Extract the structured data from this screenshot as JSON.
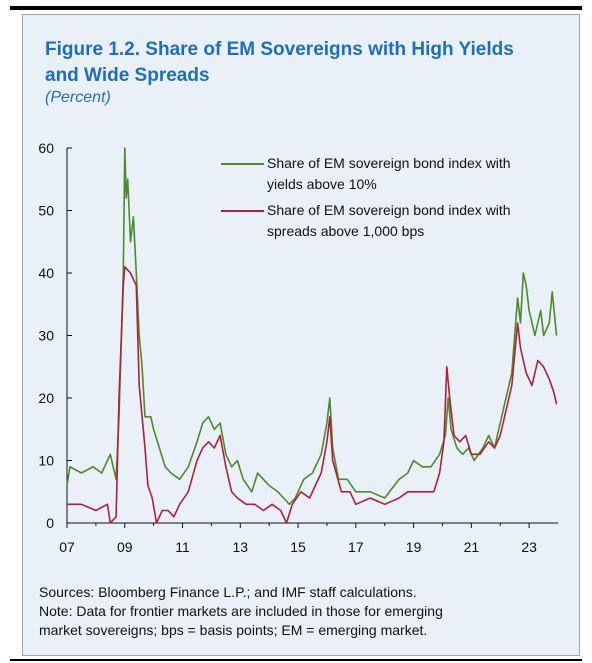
{
  "header": {
    "title_line1": "Figure 1.2. Share of EM Sovereigns with High Yields",
    "title_line2": "and Wide Spreads",
    "subtitle": "(Percent)"
  },
  "notes": {
    "sources": "Sources: Bloomberg Finance L.P.; and IMF staff calculations.",
    "note_line1": "Note: Data for frontier markets are included in those for emerging",
    "note_line2": "market sovereigns; bps = basis points; EM = emerging market."
  },
  "colors": {
    "green": "#4d8a2f",
    "red": "#b0203a",
    "title": "#1f6fb8",
    "panel": "#e9f0f7"
  },
  "chart_data": {
    "type": "line",
    "title": "Figure 1.2. Share of EM Sovereigns with High Yields and Wide Spreads",
    "ylabel": "(Percent)",
    "xlabel": "",
    "xlim": [
      2007,
      2024
    ],
    "ylim": [
      0,
      60
    ],
    "x_ticks": [
      "07",
      "09",
      "11",
      "13",
      "15",
      "17",
      "19",
      "21",
      "23"
    ],
    "y_ticks": [
      "0",
      "10",
      "20",
      "30",
      "40",
      "50",
      "60"
    ],
    "grid": false,
    "legend_position": "top-right",
    "series": [
      {
        "name": "Share of EM sovereign bond index with yields above 10%",
        "legend_lines": [
          "Share of EM sovereign bond index with",
          "yields above 10%"
        ],
        "color": "#4d8a2f",
        "points": [
          [
            2007.0,
            6
          ],
          [
            2007.1,
            9
          ],
          [
            2007.5,
            8
          ],
          [
            2007.9,
            9
          ],
          [
            2008.2,
            8
          ],
          [
            2008.5,
            11
          ],
          [
            2008.7,
            7
          ],
          [
            2008.8,
            17
          ],
          [
            2008.95,
            40
          ],
          [
            2009.0,
            60
          ],
          [
            2009.05,
            52
          ],
          [
            2009.1,
            55
          ],
          [
            2009.2,
            45
          ],
          [
            2009.3,
            49
          ],
          [
            2009.4,
            40
          ],
          [
            2009.5,
            30
          ],
          [
            2009.6,
            25
          ],
          [
            2009.7,
            17
          ],
          [
            2009.9,
            17
          ],
          [
            2010.0,
            15
          ],
          [
            2010.2,
            12
          ],
          [
            2010.4,
            9
          ],
          [
            2010.6,
            8
          ],
          [
            2010.9,
            7
          ],
          [
            2011.2,
            9
          ],
          [
            2011.5,
            13
          ],
          [
            2011.7,
            16
          ],
          [
            2011.9,
            17
          ],
          [
            2012.1,
            15
          ],
          [
            2012.3,
            16
          ],
          [
            2012.5,
            11
          ],
          [
            2012.7,
            9
          ],
          [
            2012.9,
            10
          ],
          [
            2013.1,
            7
          ],
          [
            2013.4,
            5
          ],
          [
            2013.6,
            8
          ],
          [
            2013.8,
            7
          ],
          [
            2014.0,
            6
          ],
          [
            2014.3,
            5
          ],
          [
            2014.5,
            4
          ],
          [
            2014.7,
            3
          ],
          [
            2014.9,
            4
          ],
          [
            2015.2,
            7
          ],
          [
            2015.5,
            8
          ],
          [
            2015.8,
            11
          ],
          [
            2016.0,
            16
          ],
          [
            2016.1,
            20
          ],
          [
            2016.2,
            12
          ],
          [
            2016.4,
            7
          ],
          [
            2016.7,
            7
          ],
          [
            2017.0,
            5
          ],
          [
            2017.5,
            5
          ],
          [
            2018.0,
            4
          ],
          [
            2018.5,
            7
          ],
          [
            2018.8,
            8
          ],
          [
            2019.0,
            10
          ],
          [
            2019.3,
            9
          ],
          [
            2019.6,
            9
          ],
          [
            2019.9,
            11
          ],
          [
            2020.1,
            14
          ],
          [
            2020.2,
            20
          ],
          [
            2020.3,
            15
          ],
          [
            2020.5,
            12
          ],
          [
            2020.7,
            11
          ],
          [
            2020.9,
            12
          ],
          [
            2021.1,
            10
          ],
          [
            2021.4,
            12
          ],
          [
            2021.6,
            14
          ],
          [
            2021.8,
            12
          ],
          [
            2022.0,
            16
          ],
          [
            2022.2,
            20
          ],
          [
            2022.4,
            24
          ],
          [
            2022.6,
            36
          ],
          [
            2022.7,
            32
          ],
          [
            2022.8,
            40
          ],
          [
            2022.9,
            38
          ],
          [
            2023.0,
            34
          ],
          [
            2023.2,
            30
          ],
          [
            2023.4,
            34
          ],
          [
            2023.5,
            30
          ],
          [
            2023.7,
            32
          ],
          [
            2023.8,
            37
          ],
          [
            2023.95,
            30
          ]
        ]
      },
      {
        "name": "Share of EM sovereign bond index with spreads above 1,000 bps",
        "legend_lines": [
          "Share of EM sovereign bond index with",
          "spreads above 1,000 bps"
        ],
        "color": "#b0203a",
        "points": [
          [
            2007.0,
            3
          ],
          [
            2007.5,
            3
          ],
          [
            2008.0,
            2
          ],
          [
            2008.4,
            3
          ],
          [
            2008.5,
            0
          ],
          [
            2008.7,
            1
          ],
          [
            2008.8,
            20
          ],
          [
            2008.95,
            38
          ],
          [
            2009.0,
            41
          ],
          [
            2009.2,
            40
          ],
          [
            2009.4,
            38
          ],
          [
            2009.5,
            22
          ],
          [
            2009.7,
            12
          ],
          [
            2009.8,
            6
          ],
          [
            2009.95,
            4
          ],
          [
            2010.1,
            0
          ],
          [
            2010.3,
            2
          ],
          [
            2010.5,
            2
          ],
          [
            2010.7,
            1
          ],
          [
            2010.9,
            3
          ],
          [
            2011.2,
            5
          ],
          [
            2011.5,
            10
          ],
          [
            2011.7,
            12
          ],
          [
            2011.9,
            13
          ],
          [
            2012.1,
            12
          ],
          [
            2012.3,
            14
          ],
          [
            2012.5,
            9
          ],
          [
            2012.7,
            5
          ],
          [
            2012.9,
            4
          ],
          [
            2013.2,
            3
          ],
          [
            2013.5,
            3
          ],
          [
            2013.8,
            2
          ],
          [
            2014.1,
            3
          ],
          [
            2014.4,
            2
          ],
          [
            2014.6,
            0
          ],
          [
            2014.8,
            3
          ],
          [
            2015.1,
            5
          ],
          [
            2015.4,
            4
          ],
          [
            2015.8,
            8
          ],
          [
            2016.0,
            13
          ],
          [
            2016.1,
            17
          ],
          [
            2016.2,
            10
          ],
          [
            2016.5,
            5
          ],
          [
            2016.8,
            5
          ],
          [
            2017.0,
            3
          ],
          [
            2017.5,
            4
          ],
          [
            2018.0,
            3
          ],
          [
            2018.5,
            4
          ],
          [
            2018.8,
            5
          ],
          [
            2019.1,
            5
          ],
          [
            2019.4,
            5
          ],
          [
            2019.7,
            5
          ],
          [
            2019.9,
            8
          ],
          [
            2020.05,
            13
          ],
          [
            2020.15,
            25
          ],
          [
            2020.25,
            20
          ],
          [
            2020.4,
            14
          ],
          [
            2020.6,
            13
          ],
          [
            2020.8,
            14
          ],
          [
            2021.0,
            11
          ],
          [
            2021.3,
            11
          ],
          [
            2021.6,
            13
          ],
          [
            2021.8,
            12
          ],
          [
            2022.0,
            14
          ],
          [
            2022.2,
            18
          ],
          [
            2022.4,
            22
          ],
          [
            2022.6,
            32
          ],
          [
            2022.7,
            28
          ],
          [
            2022.9,
            24
          ],
          [
            2023.1,
            22
          ],
          [
            2023.3,
            26
          ],
          [
            2023.5,
            25
          ],
          [
            2023.7,
            23
          ],
          [
            2023.85,
            21
          ],
          [
            2023.95,
            19
          ]
        ]
      }
    ]
  }
}
